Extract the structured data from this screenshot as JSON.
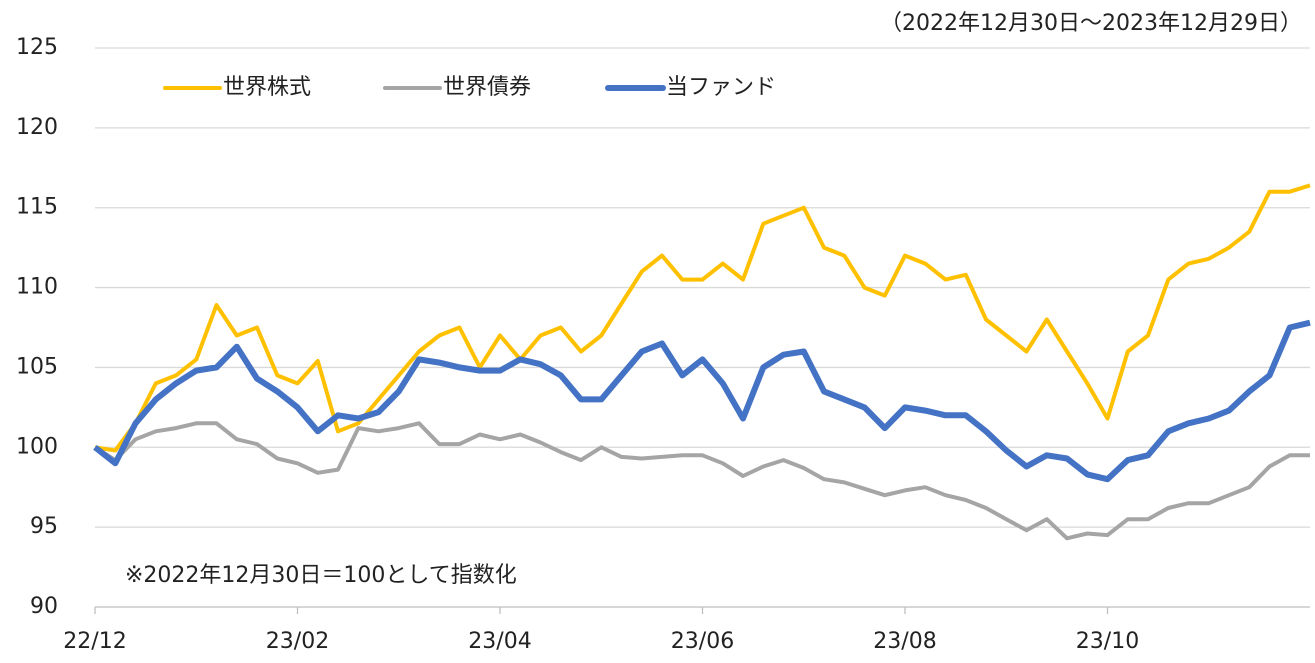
{
  "chart_data": {
    "type": "line",
    "title": "（2022年12月30日～2023年12月29日）",
    "annotation": "※2022年12月30日＝100として指数化",
    "categories": [
      "22/12",
      null,
      null,
      null,
      null,
      null,
      null,
      null,
      null,
      null,
      "23/02",
      null,
      null,
      null,
      null,
      null,
      null,
      null,
      null,
      null,
      "23/04",
      null,
      null,
      null,
      null,
      null,
      null,
      null,
      null,
      null,
      "23/06",
      null,
      null,
      null,
      null,
      null,
      null,
      null,
      null,
      null,
      "23/08",
      null,
      null,
      null,
      null,
      null,
      null,
      null,
      null,
      null,
      "23/10",
      null,
      null,
      null,
      null,
      null,
      null,
      null,
      null,
      null,
      null
    ],
    "series": [
      {
        "name": "世界株式",
        "color": "#FFC000",
        "width": 4,
        "values": [
          100,
          99.8,
          101.5,
          104,
          104.5,
          105.5,
          108.9,
          107,
          107.5,
          104.5,
          104,
          105.4,
          101,
          101.5,
          103,
          104.5,
          106,
          107,
          107.5,
          105,
          107,
          105.5,
          107,
          107.5,
          106,
          107,
          109,
          111,
          112,
          110.5,
          110.5,
          111.5,
          110.5,
          114,
          114.5,
          115,
          112.5,
          112,
          110,
          109.5,
          112,
          111.5,
          110.5,
          110.8,
          108,
          107,
          106,
          108,
          106,
          104,
          101.8,
          106,
          107,
          110.5,
          111.5,
          111.8,
          112.5,
          113.5,
          116,
          116,
          116.4
        ]
      },
      {
        "name": "世界債券",
        "color": "#A5A5A5",
        "width": 4,
        "values": [
          100,
          99.2,
          100.5,
          101,
          101.2,
          101.5,
          101.5,
          100.5,
          100.2,
          99.3,
          99,
          98.4,
          98.6,
          101.2,
          101,
          101.2,
          101.5,
          100.2,
          100.2,
          100.8,
          100.5,
          100.8,
          100.3,
          99.7,
          99.2,
          100,
          99.4,
          99.3,
          99.4,
          99.5,
          99.5,
          99,
          98.2,
          98.8,
          99.2,
          98.7,
          98,
          97.8,
          97.4,
          97,
          97.3,
          97.5,
          97,
          96.7,
          96.2,
          95.5,
          94.8,
          95.5,
          94.3,
          94.6,
          94.5,
          95.5,
          95.5,
          96.2,
          96.5,
          96.5,
          97,
          97.5,
          98.8,
          99.5,
          99.5
        ]
      },
      {
        "name": "当ファンド",
        "color": "#4472C4",
        "width": 6,
        "values": [
          100,
          99,
          101.5,
          103,
          104,
          104.8,
          105,
          106.3,
          104.3,
          103.5,
          102.5,
          101,
          102,
          101.8,
          102.2,
          103.5,
          105.5,
          105.3,
          105,
          104.8,
          104.8,
          105.5,
          105.2,
          104.5,
          103,
          103,
          104.5,
          106,
          106.5,
          104.5,
          105.5,
          104,
          101.8,
          105,
          105.8,
          106,
          103.5,
          103,
          102.5,
          101.2,
          102.5,
          102.3,
          102,
          102,
          101,
          99.8,
          98.8,
          99.5,
          99.3,
          98.3,
          98,
          99.2,
          99.5,
          101,
          101.5,
          101.8,
          102.3,
          103.5,
          104.5,
          107.5,
          107.8
        ]
      }
    ],
    "ylim": [
      90,
      125
    ],
    "yticks": [
      90,
      95,
      100,
      105,
      110,
      115,
      120,
      125
    ],
    "grid": true
  }
}
